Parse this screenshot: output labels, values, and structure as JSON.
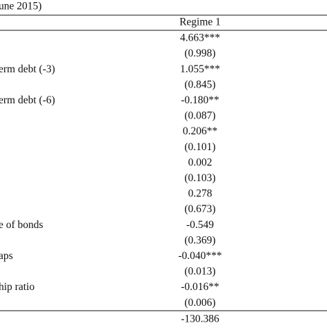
{
  "header": {
    "caption": "une 2015)"
  },
  "table": {
    "column_header": "Regime 1",
    "rows": [
      {
        "value": "4.663***"
      },
      {
        "value": "(0.998)"
      },
      {
        "label": "erm debt (-3)",
        "value": "1.055***"
      },
      {
        "value": "(0.845)"
      },
      {
        "label": "erm debt (-6)",
        "value": "-0.180**"
      },
      {
        "value": "(0.087)"
      },
      {
        "value": "0.206**"
      },
      {
        "value": "(0.101)"
      },
      {
        "value": "0.002"
      },
      {
        "value": "(0.103)"
      },
      {
        "value": "0.278"
      },
      {
        "value": "(0.673)"
      },
      {
        "label": "e of bonds",
        "value": "-0.549"
      },
      {
        "value": "(0.369)"
      },
      {
        "label": "aps",
        "value": "-0.040***"
      },
      {
        "value": "(0.013)"
      },
      {
        "label": "hip ratio",
        "value": "-0.016**"
      },
      {
        "value": "(0.006)"
      }
    ],
    "footer_value": "-130.386"
  }
}
